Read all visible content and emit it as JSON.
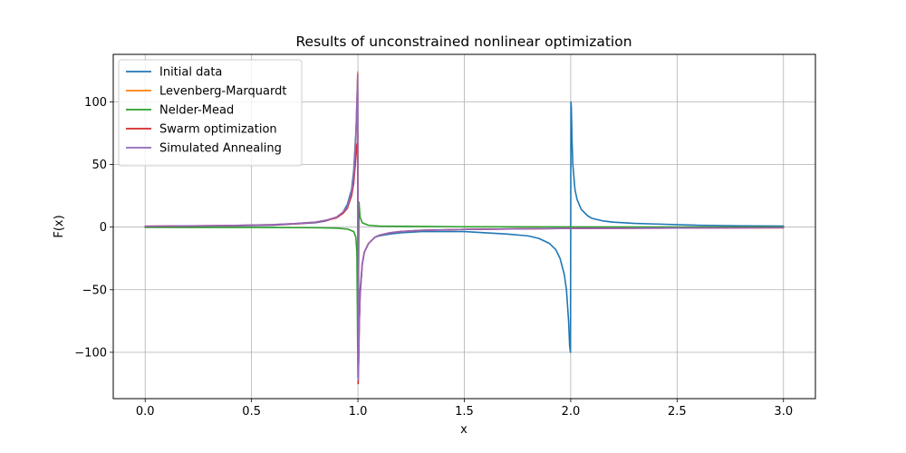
{
  "chart_data": {
    "type": "line",
    "title": "Results of unconstrained nonlinear optimization",
    "xlabel": "x",
    "ylabel": "F(x)",
    "xlim": [
      -0.15,
      3.15
    ],
    "ylim": [
      -137,
      138
    ],
    "xticks": [
      0.0,
      0.5,
      1.0,
      1.5,
      2.0,
      2.5,
      3.0
    ],
    "xtick_labels": [
      "0.0",
      "0.5",
      "1.0",
      "1.5",
      "2.0",
      "2.5",
      "3.0"
    ],
    "yticks": [
      -100,
      -50,
      0,
      50,
      100
    ],
    "ytick_labels": [
      "−100",
      "−50",
      "0",
      "50",
      "100"
    ],
    "grid": true,
    "legend_position": "top-left",
    "series": [
      {
        "name": "Initial data",
        "color": "#1f77b4",
        "x": [
          0.0,
          0.2,
          0.4,
          0.6,
          0.7,
          0.8,
          0.85,
          0.9,
          0.93,
          0.95,
          0.97,
          0.98,
          0.99,
          0.995,
          0.999,
          1.001,
          1.003,
          1.006,
          1.01,
          1.02,
          1.03,
          1.05,
          1.08,
          1.1,
          1.15,
          1.2,
          1.3,
          1.4,
          1.5,
          1.6,
          1.7,
          1.8,
          1.85,
          1.9,
          1.93,
          1.95,
          1.97,
          1.98,
          1.99,
          1.995,
          1.999,
          2.001,
          2.003,
          2.006,
          2.01,
          2.02,
          2.03,
          2.05,
          2.08,
          2.1,
          2.15,
          2.2,
          2.3,
          2.4,
          2.6,
          2.8,
          3.0
        ],
        "y": [
          0.5,
          0.8,
          1.0,
          1.5,
          2.5,
          3.5,
          5.0,
          8.0,
          12,
          18,
          30,
          45,
          75,
          95,
          110,
          -110,
          -100,
          -70,
          -50,
          -30,
          -20,
          -13,
          -8,
          -7,
          -5.5,
          -4.5,
          -3.5,
          -3.5,
          -3.5,
          -4.5,
          -5.5,
          -7,
          -9,
          -13,
          -18,
          -25,
          -38,
          -50,
          -75,
          -95,
          -100,
          100,
          95,
          70,
          50,
          30,
          22,
          14,
          9,
          7,
          5,
          4,
          3,
          2.5,
          1.5,
          1.0,
          0.8
        ]
      },
      {
        "name": "Levenberg-Marquardt",
        "color": "#ff7f0e",
        "x": [
          0.0,
          0.2,
          0.4,
          0.6,
          0.7,
          0.8,
          0.85,
          0.9,
          0.93,
          0.95,
          0.97,
          0.98,
          0.99,
          0.995,
          0.999,
          1.001,
          1.003,
          1.006,
          1.01,
          1.02,
          1.03,
          1.05,
          1.08,
          1.1,
          1.15,
          1.2,
          1.3,
          1.5,
          2.0,
          2.5,
          3.0
        ],
        "y": [
          0.7,
          1.0,
          1.3,
          2.0,
          2.8,
          4.0,
          5.5,
          8.0,
          12,
          16,
          28,
          40,
          70,
          100,
          124,
          -124,
          -110,
          -80,
          -55,
          -30,
          -20,
          -13,
          -8,
          -6.5,
          -4.5,
          -3.5,
          -2.5,
          -1.8,
          -1.0,
          -0.7,
          -0.5
        ]
      },
      {
        "name": "Nelder-Mead",
        "color": "#2ca02c",
        "x": [
          0.0,
          0.5,
          0.8,
          0.9,
          0.95,
          0.98,
          0.99,
          0.995,
          1.0,
          1.005,
          1.01,
          1.02,
          1.05,
          1.1,
          1.5,
          2.0,
          2.5,
          3.0
        ],
        "y": [
          -0.2,
          -0.3,
          -0.5,
          -0.8,
          -1.5,
          -3.5,
          -8,
          -20,
          -120,
          20,
          8,
          3.5,
          1.5,
          0.8,
          0.3,
          0.2,
          0.1,
          0.1
        ]
      },
      {
        "name": "Swarm optimization",
        "color": "#d62728",
        "x": [
          0.0,
          0.2,
          0.4,
          0.6,
          0.7,
          0.8,
          0.85,
          0.9,
          0.93,
          0.95,
          0.97,
          0.98,
          0.99,
          0.995,
          0.999,
          1.001,
          1.003,
          1.006,
          1.01,
          1.02,
          1.03,
          1.05,
          1.08,
          1.1,
          1.15,
          1.2,
          1.3,
          1.5,
          2.0,
          2.5,
          3.0
        ],
        "y": [
          0.6,
          0.9,
          1.2,
          1.8,
          2.6,
          3.8,
          5.2,
          7.5,
          11,
          15,
          25,
          35,
          55,
          66,
          67,
          -125,
          -110,
          -80,
          -55,
          -30,
          -20,
          -13,
          -8,
          -6.5,
          -4.5,
          -3.5,
          -2.5,
          -1.8,
          -1.0,
          -0.7,
          -0.5
        ]
      },
      {
        "name": "Simulated Annealing",
        "color": "#9467bd",
        "x": [
          0.0,
          0.2,
          0.4,
          0.6,
          0.7,
          0.8,
          0.85,
          0.9,
          0.93,
          0.95,
          0.97,
          0.98,
          0.99,
          0.995,
          0.999,
          1.001,
          1.003,
          1.006,
          1.01,
          1.02,
          1.03,
          1.05,
          1.08,
          1.1,
          1.15,
          1.2,
          1.3,
          1.5,
          2.0,
          2.5,
          3.0
        ],
        "y": [
          0.7,
          1.0,
          1.3,
          2.0,
          2.8,
          4.0,
          5.5,
          8.0,
          12,
          16,
          28,
          40,
          70,
          100,
          122,
          -122,
          -110,
          -80,
          -55,
          -30,
          -20,
          -13,
          -8,
          -6.5,
          -4.5,
          -3.5,
          -2.5,
          -1.8,
          -1.0,
          -0.7,
          -0.5
        ]
      }
    ]
  }
}
